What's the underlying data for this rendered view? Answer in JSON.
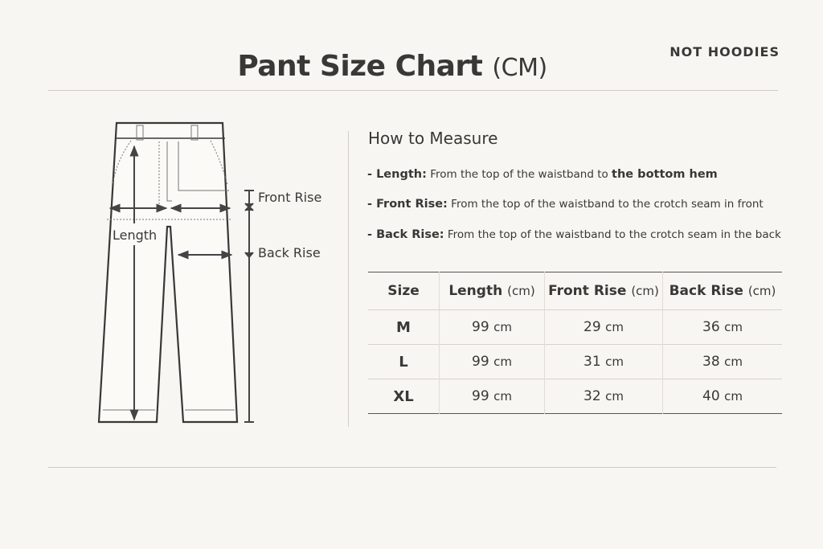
{
  "header": {
    "title": "Pant Size Chart",
    "unit": "(CM)",
    "brand": "NOT HOODIES"
  },
  "diagram": {
    "length_label": "Length",
    "front_rise_label": "Front Rise",
    "back_rise_label": "Back Rise"
  },
  "how_to": {
    "title": "How to Measure",
    "items": [
      {
        "term": "- Length:",
        "text": "From the top of the waistband to ",
        "bold_tail": "the bottom hem"
      },
      {
        "term": "- Front Rise:",
        "text": "From the top of the waistband to the crotch seam in front",
        "bold_tail": ""
      },
      {
        "term": "- Back Rise:",
        "text": "From the top of the waistband to the crotch seam in the back",
        "bold_tail": ""
      }
    ]
  },
  "table": {
    "headers": [
      {
        "label": "Size",
        "unit": ""
      },
      {
        "label": "Length",
        "unit": "(cm)"
      },
      {
        "label": "Front Rise",
        "unit": "(cm)"
      },
      {
        "label": "Back Rise",
        "unit": "(cm)"
      }
    ],
    "unit": "cm",
    "rows": [
      {
        "size": "M",
        "length": "99",
        "front_rise": "29",
        "back_rise": "36"
      },
      {
        "size": "L",
        "length": "99",
        "front_rise": "31",
        "back_rise": "38"
      },
      {
        "size": "XL",
        "length": "99",
        "front_rise": "32",
        "back_rise": "40"
      }
    ]
  }
}
